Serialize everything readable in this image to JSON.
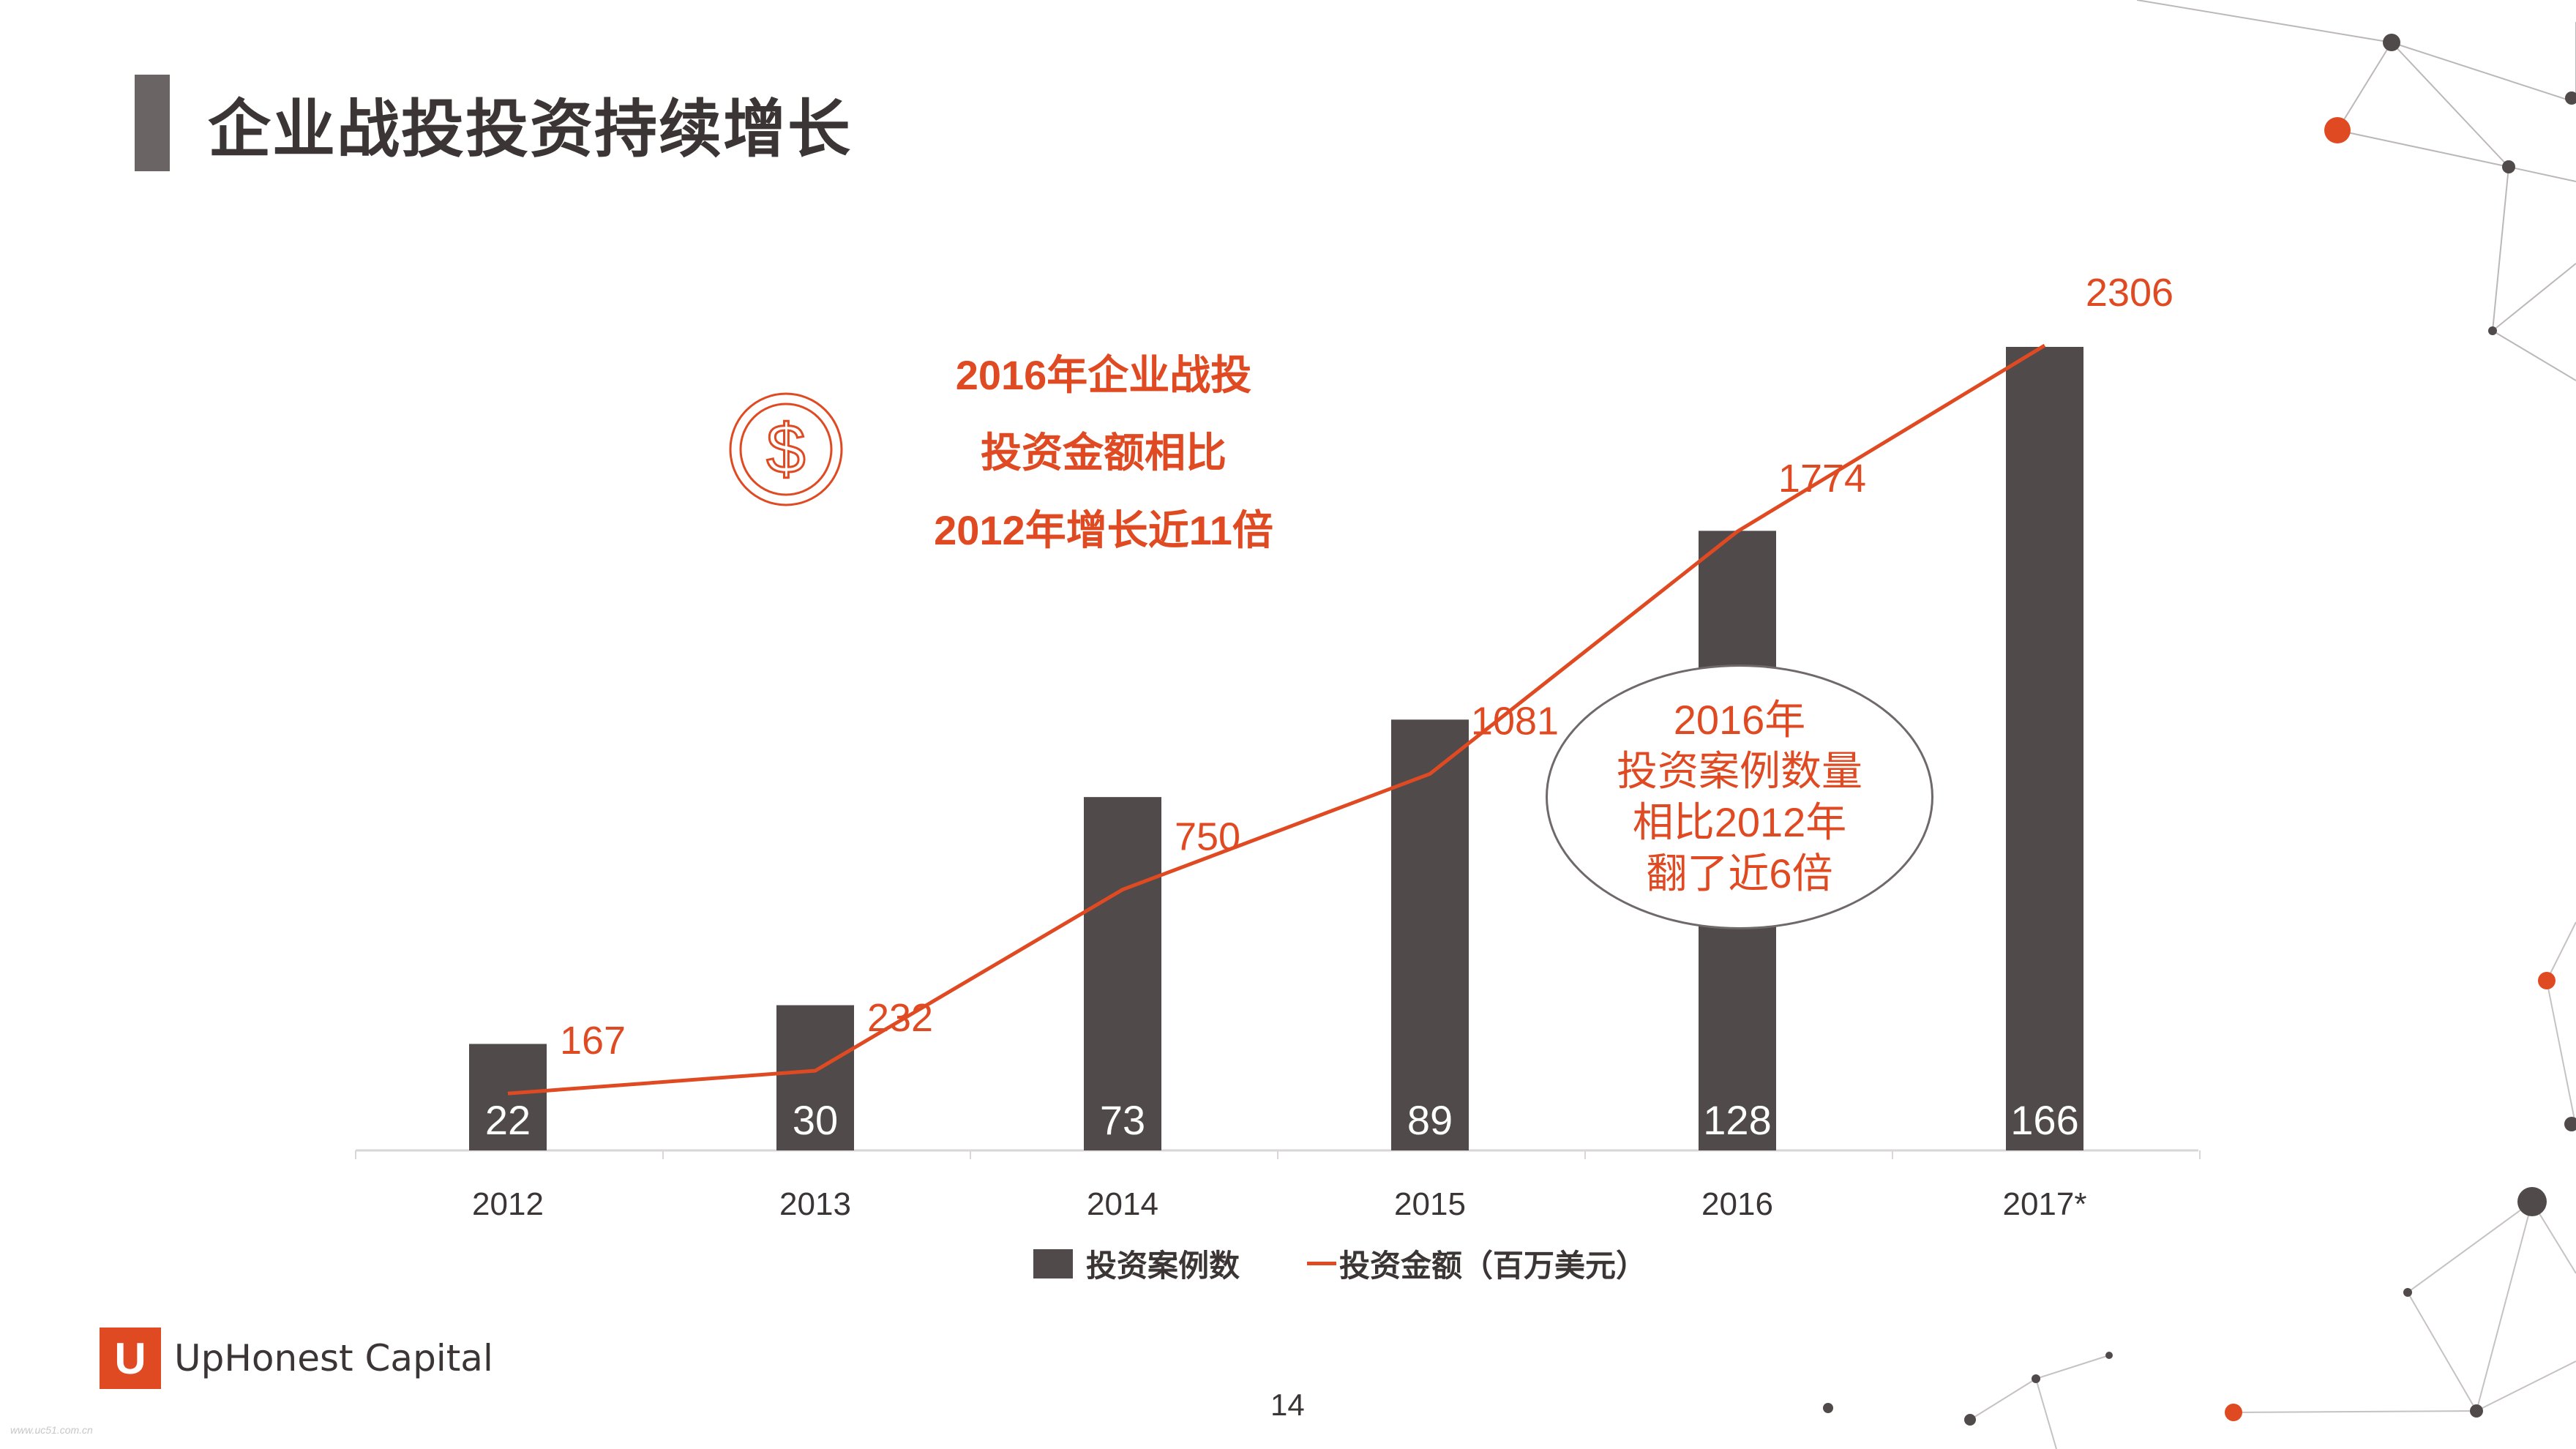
{
  "slide": {
    "title": "企业战投投资持续增长",
    "page_number": "14",
    "watermark": "www.uc51.com.cn"
  },
  "callout": {
    "lines": [
      "2016年企业战投",
      "投资金额相比",
      "2012年增长近11倍"
    ],
    "icon": "dollar-coin-icon"
  },
  "bubble": {
    "lines": [
      "2016年",
      "投资案例数量",
      "相比2012年",
      "翻了近6倍"
    ]
  },
  "legend": {
    "bar_label": "投资案例数",
    "line_label": "投资金额（百万美元）"
  },
  "logo": {
    "mark": "U",
    "name": "UpHonest Capital"
  },
  "colors": {
    "bar": "#514a4a",
    "line": "#e04a22",
    "title": "#3b3536",
    "accent": "#e04a22"
  },
  "chart_data": {
    "type": "bar",
    "categories": [
      "2012",
      "2013",
      "2014",
      "2015",
      "2016",
      "2017*"
    ],
    "series": [
      {
        "name": "投资案例数",
        "type": "bar",
        "values": [
          22,
          30,
          73,
          89,
          128,
          166
        ]
      },
      {
        "name": "投资金额（百万美元）",
        "type": "line",
        "values": [
          167,
          232,
          750,
          1081,
          1774,
          2306
        ]
      }
    ],
    "bar_ylim": [
      0,
      166
    ],
    "line_ylim": [
      0,
      2306
    ],
    "grid": false,
    "legend_position": "bottom"
  }
}
